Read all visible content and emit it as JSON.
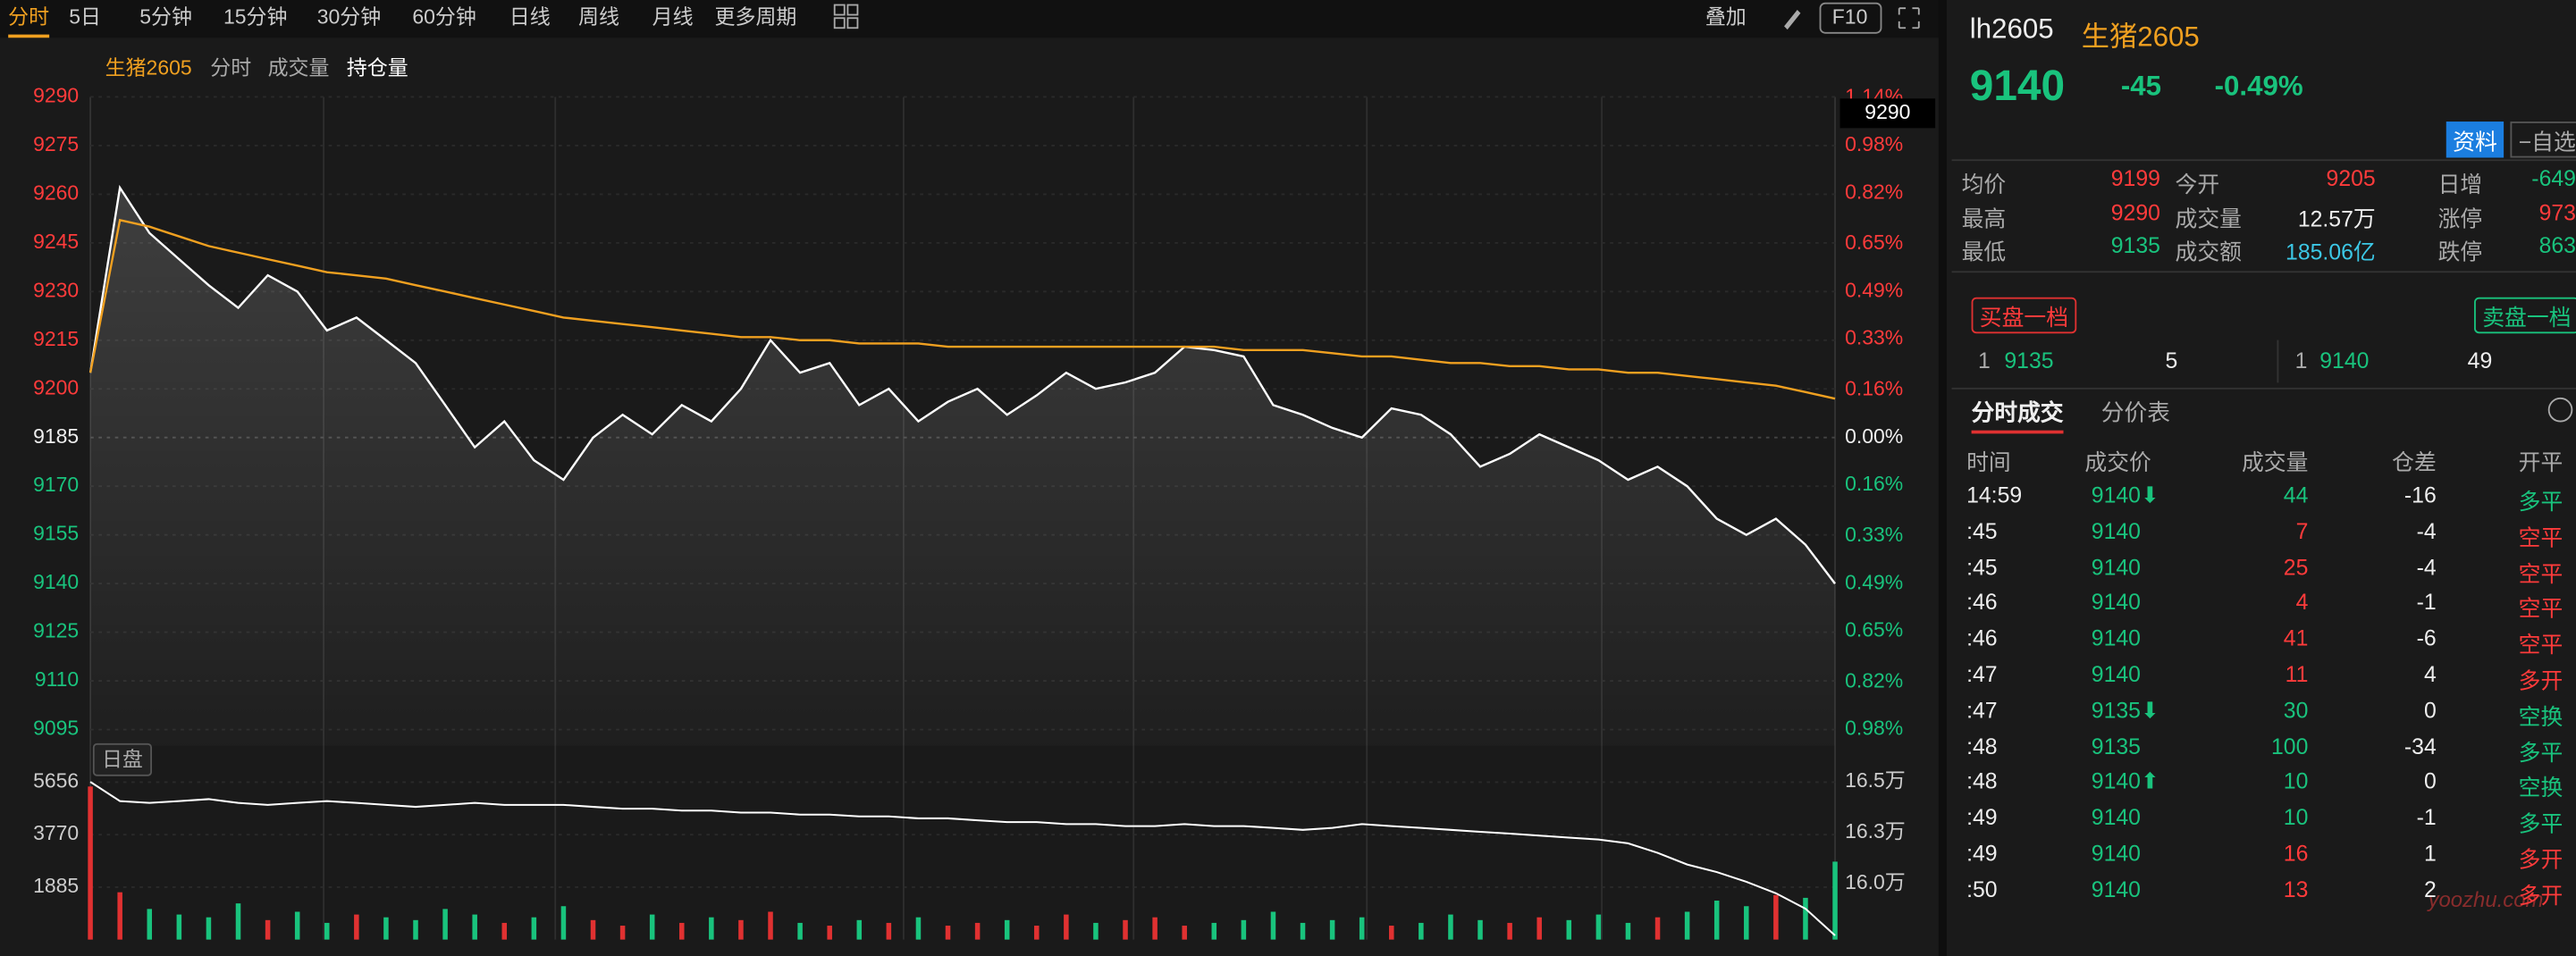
{
  "toolbar": {
    "periods": [
      "分时",
      "5日",
      "5分钟",
      "15分钟",
      "30分钟",
      "60分钟",
      "日线",
      "周线",
      "月线",
      "更多周期"
    ],
    "overlay": "叠加",
    "f10": "F10"
  },
  "chart_data": [
    {
      "type": "line",
      "title": "生猪2605",
      "tabs": [
        "分时",
        "成交量",
        "持仓量"
      ],
      "session_label": "日盘",
      "cursor_label": "9290",
      "ylim": [
        9090,
        9290
      ],
      "yticks": [
        9290,
        9275,
        9260,
        9245,
        9230,
        9215,
        9200,
        9185,
        9170,
        9155,
        9140,
        9125,
        9110,
        9095
      ],
      "y2lim": [
        -1.034,
        1.143
      ],
      "y2ticks": [
        {
          "value": 1.14,
          "label": "1.14%"
        },
        {
          "value": 0.98,
          "label": "0.98%"
        },
        {
          "value": 0.82,
          "label": "0.82%"
        },
        {
          "value": 0.65,
          "label": "0.65%"
        },
        {
          "value": 0.49,
          "label": "0.49%"
        },
        {
          "value": 0.33,
          "label": "0.33%"
        },
        {
          "value": 0.16,
          "label": "0.16%"
        },
        {
          "value": 0,
          "label": "0.00%"
        },
        {
          "value": -0.16,
          "label": "0.16%"
        },
        {
          "value": -0.33,
          "label": "0.33%"
        },
        {
          "value": -0.49,
          "label": "0.49%"
        },
        {
          "value": -0.65,
          "label": "0.65%"
        },
        {
          "value": -0.82,
          "label": "0.82%"
        },
        {
          "value": -0.98,
          "label": "0.98%"
        }
      ],
      "grid": true,
      "up_color": "#ff3b3b",
      "down_color": "#19c37d",
      "series": [
        {
          "color": "#ffffff",
          "values": [
            9205,
            9262,
            9248,
            9240,
            9232,
            9225,
            9235,
            9230,
            9218,
            9222,
            9215,
            9208,
            9195,
            9182,
            9190,
            9178,
            9172,
            9185,
            9192,
            9186,
            9195,
            9190,
            9200,
            9215,
            9205,
            9208,
            9195,
            9200,
            9190,
            9196,
            9200,
            9192,
            9198,
            9205,
            9200,
            9202,
            9205,
            9213,
            9212,
            9210,
            9195,
            9192,
            9188,
            9185,
            9194,
            9192,
            9186,
            9176,
            9180,
            9186,
            9182,
            9178,
            9172,
            9176,
            9170,
            9160,
            9155,
            9160,
            9152,
            9140
          ]
        },
        {
          "color": "#f0a020",
          "values": [
            9205,
            9252,
            9250,
            9247,
            9244,
            9242,
            9240,
            9238,
            9236,
            9235,
            9234,
            9232,
            9230,
            9228,
            9226,
            9224,
            9222,
            9221,
            9220,
            9219,
            9218,
            9217,
            9216,
            9216,
            9215,
            9215,
            9214,
            9214,
            9214,
            9213,
            9213,
            9213,
            9213,
            9213,
            9213,
            9213,
            9213,
            9213,
            9213,
            9212,
            9212,
            9212,
            9211,
            9210,
            9210,
            9209,
            9208,
            9208,
            9207,
            9207,
            9206,
            9206,
            9205,
            9205,
            9204,
            9203,
            9202,
            9201,
            9199,
            9197
          ]
        }
      ]
    },
    {
      "type": "bar",
      "ylim": [
        0,
        6020
      ],
      "yticks": [
        1885,
        3770,
        5656
      ],
      "up_color": "#e03131",
      "down_color": "#19c37d",
      "values": [
        5500,
        1700,
        1100,
        900,
        800,
        1300,
        700,
        1000,
        600,
        900,
        800,
        700,
        1100,
        900,
        600,
        800,
        1200,
        700,
        500,
        900,
        600,
        800,
        700,
        1000,
        600,
        500,
        700,
        600,
        800,
        500,
        600,
        700,
        500,
        900,
        600,
        700,
        800,
        500,
        600,
        700,
        1000,
        600,
        700,
        800,
        500,
        600,
        900,
        700,
        600,
        800,
        700,
        900,
        600,
        800,
        1000,
        1400,
        1200,
        1600,
        1500,
        2800
      ],
      "y2lim": [
        157090,
        165810
      ],
      "y2ticks": [
        {
          "value": 165300,
          "label": "16.5万"
        },
        {
          "value": 162650,
          "label": "16.3万"
        },
        {
          "value": 160000,
          "label": "16.0万"
        }
      ],
      "series": [
        {
          "color": "#ffffff",
          "axis": "y2",
          "values": [
            165300,
            164300,
            164200,
            164300,
            164400,
            164200,
            164100,
            164200,
            164300,
            164200,
            164100,
            164000,
            164100,
            164200,
            164100,
            164100,
            164100,
            164000,
            163900,
            163900,
            163800,
            163800,
            163700,
            163700,
            163600,
            163600,
            163500,
            163500,
            163400,
            163400,
            163300,
            163200,
            163200,
            163100,
            163100,
            163000,
            163000,
            163100,
            163000,
            163000,
            162900,
            162800,
            162900,
            163100,
            163000,
            162900,
            162800,
            162700,
            162600,
            162500,
            162400,
            162300,
            162100,
            161600,
            161000,
            160600,
            160100,
            159500,
            158700,
            157300
          ]
        }
      ]
    }
  ],
  "quote": {
    "code": "lh2605",
    "name": "生猪2605",
    "price": "9140",
    "change": "-45",
    "change_pct": "-0.49%",
    "info_btn": "资料",
    "watch_btn": "−自选",
    "stats": [
      [
        "均价",
        "9199",
        "今开",
        "9205",
        "日增",
        "-649"
      ],
      [
        "最高",
        "9290",
        "成交量",
        "12.57万",
        "涨停",
        "973"
      ],
      [
        "最低",
        "9135",
        "成交额",
        "185.06亿",
        "跌停",
        "863"
      ]
    ]
  },
  "orderbook": {
    "bid_title": "买盘一档",
    "ask_title": "卖盘一档",
    "bid": [
      "1",
      "9135",
      "5"
    ],
    "ask": [
      "1",
      "9140",
      "49"
    ]
  },
  "trades": {
    "tabs": [
      "分时成交",
      "分价表"
    ],
    "header": [
      "时间",
      "成交价",
      "成交量",
      "仓差",
      "开平"
    ],
    "rows": [
      [
        "14:59",
        "9140⬇",
        "44",
        "-16",
        "多平"
      ],
      [
        ":45",
        "9140",
        "7",
        "-4",
        "空平"
      ],
      [
        ":45",
        "9140",
        "25",
        "-4",
        "空平"
      ],
      [
        ":46",
        "9140",
        "4",
        "-1",
        "空平"
      ],
      [
        ":46",
        "9140",
        "41",
        "-6",
        "空平"
      ],
      [
        ":47",
        "9140",
        "11",
        "4",
        "多开"
      ],
      [
        ":47",
        "9135⬇",
        "30",
        "0",
        "空换"
      ],
      [
        ":48",
        "9135",
        "100",
        "-34",
        "多平"
      ],
      [
        ":48",
        "9140⬆",
        "10",
        "0",
        "空换"
      ],
      [
        ":49",
        "9140",
        "10",
        "-1",
        "多平"
      ],
      [
        ":49",
        "9140",
        "16",
        "1",
        "多开"
      ],
      [
        ":50",
        "9140",
        "13",
        "2",
        "多开"
      ]
    ]
  },
  "watermark": "yoozhu.com"
}
